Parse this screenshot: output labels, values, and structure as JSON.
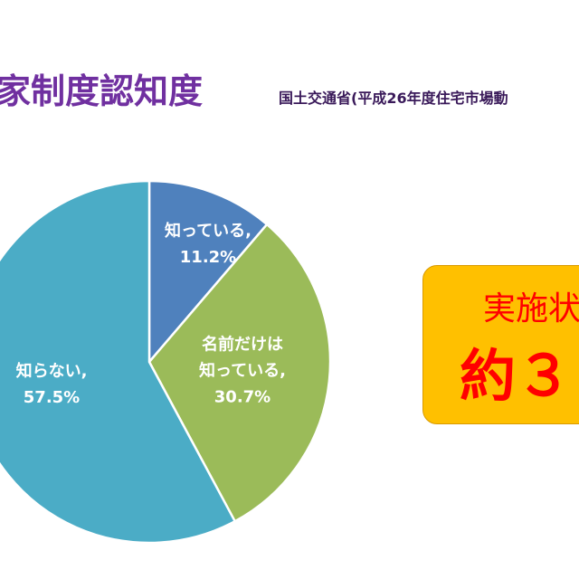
{
  "chart_data": {
    "type": "pie",
    "title": "家制度認知度",
    "subtitle": "国土交通省(平成26年度住宅市場動",
    "categories": [
      "知っている,",
      "名前だけは知っている,",
      "知らない,"
    ],
    "values": [
      11.2,
      30.7,
      57.5
    ],
    "value_labels": [
      "11.2%",
      "30.7%",
      "57.5%"
    ],
    "colors": [
      "#4f81bd",
      "#9bbb59",
      "#4bacc6"
    ],
    "annotations": [
      "実施状",
      "約３"
    ]
  }
}
